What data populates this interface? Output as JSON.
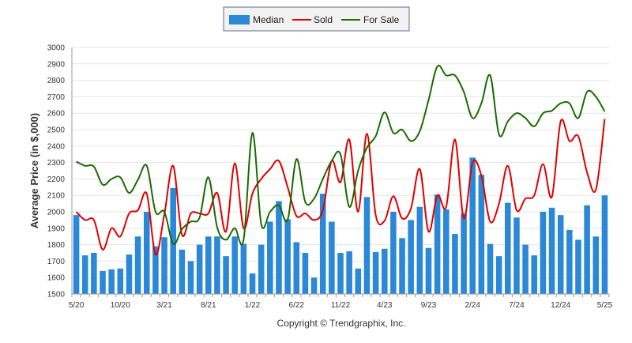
{
  "chart_data": {
    "type": "bar",
    "ylabel": "Average Price (in $,000)",
    "ylim": [
      1500,
      3000
    ],
    "y_ticks": [
      1500,
      1600,
      1700,
      1800,
      1900,
      2000,
      2100,
      2200,
      2300,
      2400,
      2500,
      2600,
      2700,
      2800,
      2900,
      3000
    ],
    "grid": true,
    "legend_position": "top-center",
    "x_tick_labels": [
      "5/20",
      "10/20",
      "3/21",
      "8/21",
      "1/22",
      "6/22",
      "11/22",
      "4/23",
      "9/23",
      "2/24",
      "7/24",
      "12/24",
      "5/25"
    ],
    "x_tick_every": 5,
    "series": [
      {
        "name": "Median",
        "kind": "bar",
        "color": "#2b88d8",
        "values": [
          1980,
          1735,
          1750,
          1640,
          1650,
          1655,
          1740,
          1850,
          2000,
          1790,
          1845,
          2145,
          1770,
          1700,
          1800,
          1850,
          1850,
          1730,
          1850,
          1805,
          1625,
          1800,
          1940,
          2065,
          1955,
          1815,
          1750,
          1600,
          2110,
          1940,
          1750,
          1760,
          1655,
          2090,
          1755,
          1775,
          2000,
          1840,
          1950,
          2030,
          1780,
          2105,
          2015,
          1865,
          1990,
          2330,
          2225,
          1805,
          1730,
          2055,
          1965,
          1800,
          1735,
          2000,
          2025,
          1980,
          1890,
          1830,
          2040,
          1850,
          2100
        ]
      },
      {
        "name": "Sold",
        "kind": "line",
        "color": "#e00000",
        "values": [
          2000,
          1950,
          1950,
          1770,
          1900,
          1850,
          1990,
          2010,
          2110,
          1740,
          1985,
          2280,
          1860,
          1990,
          1990,
          1990,
          2115,
          1880,
          2295,
          1900,
          2110,
          2200,
          2260,
          2310,
          2150,
          1975,
          1990,
          1950,
          2010,
          2310,
          2180,
          2440,
          2000,
          2475,
          1980,
          1945,
          2095,
          1960,
          2020,
          2260,
          1880,
          2100,
          2030,
          2440,
          1960,
          2300,
          2220,
          1940,
          2050,
          2280,
          2010,
          2080,
          2100,
          2290,
          2090,
          2550,
          2430,
          2460,
          2240,
          2135,
          2565
        ]
      },
      {
        "name": "For Sale",
        "kind": "line",
        "color": "#1a6b00",
        "values": [
          2305,
          2280,
          2275,
          2165,
          2200,
          2210,
          2115,
          2195,
          2280,
          2000,
          2000,
          1805,
          1895,
          1940,
          1965,
          2210,
          1905,
          1830,
          1900,
          1830,
          2480,
          1925,
          2000,
          2040,
          1950,
          2320,
          2060,
          2080,
          2200,
          2310,
          2350,
          2030,
          2250,
          2390,
          2460,
          2605,
          2480,
          2500,
          2430,
          2490,
          2680,
          2885,
          2830,
          2830,
          2730,
          2570,
          2660,
          2830,
          2470,
          2550,
          2600,
          2570,
          2520,
          2600,
          2615,
          2660,
          2660,
          2570,
          2730,
          2700,
          2610
        ]
      }
    ]
  },
  "footer": {
    "copyright": "Copyright © Trendgraphix, Inc."
  }
}
